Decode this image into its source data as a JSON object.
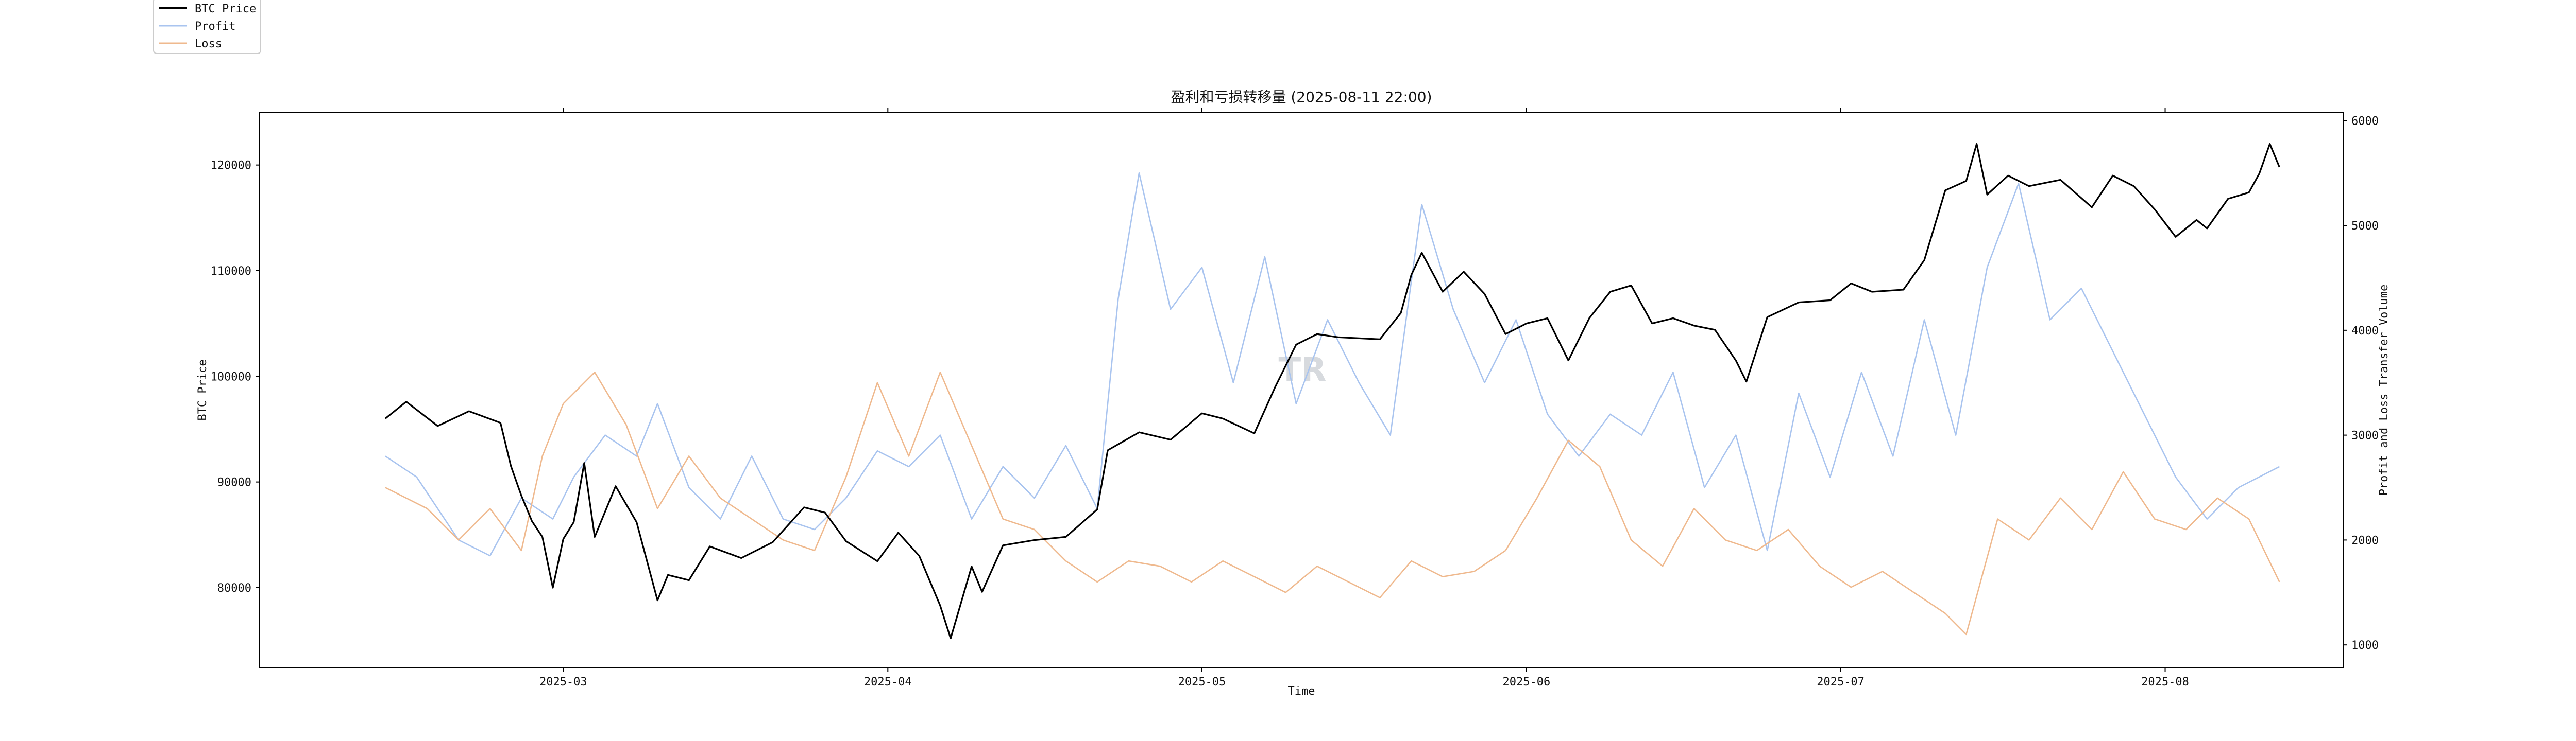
{
  "chart_data": {
    "type": "line",
    "title": "盈利和亏损转移量 (2025-08-11 22:00)",
    "xlabel": "Time",
    "ylabel_left": "BTC Price",
    "ylabel_right": "Profit and Loss Transfer Volume",
    "x_ticks": [
      "2025-03",
      "2025-04",
      "2025-05",
      "2025-06",
      "2025-07",
      "2025-08"
    ],
    "y_left_ticks": [
      80000,
      90000,
      100000,
      110000,
      120000
    ],
    "y_right_ticks": [
      1000,
      2000,
      3000,
      4000,
      5000,
      6000
    ],
    "y_left_range": [
      72400,
      125000
    ],
    "y_right_range": [
      780,
      6080
    ],
    "x_range": [
      "2025-01-31",
      "2025-08-18"
    ],
    "legend_position": "top-left",
    "watermark": "TR",
    "colors": {
      "btc": "#000000",
      "profit": "#a9c4ef",
      "loss": "#efb98e",
      "btc_profit_highlight": "#1f2f8f",
      "btc_loss_highlight": "#8a4a14"
    },
    "series": [
      {
        "name": "BTC Price",
        "axis": "left",
        "points": [
          [
            "2025-02-12",
            96000
          ],
          [
            "2025-02-14",
            97600
          ],
          [
            "2025-02-17",
            95300
          ],
          [
            "2025-02-20",
            96700
          ],
          [
            "2025-02-23",
            95600
          ],
          [
            "2025-02-24",
            91500
          ],
          [
            "2025-02-25",
            88700
          ],
          [
            "2025-02-26",
            86300
          ],
          [
            "2025-02-27",
            84800
          ],
          [
            "2025-02-28",
            80000
          ],
          [
            "2025-03-01",
            84600
          ],
          [
            "2025-03-02",
            86200
          ],
          [
            "2025-03-03",
            91800
          ],
          [
            "2025-03-04",
            84800
          ],
          [
            "2025-03-06",
            89600
          ],
          [
            "2025-03-08",
            86200
          ],
          [
            "2025-03-10",
            78800
          ],
          [
            "2025-03-11",
            81200
          ],
          [
            "2025-03-13",
            80700
          ],
          [
            "2025-03-15",
            83900
          ],
          [
            "2025-03-18",
            82800
          ],
          [
            "2025-03-21",
            84300
          ],
          [
            "2025-03-24",
            87600
          ],
          [
            "2025-03-26",
            87100
          ],
          [
            "2025-03-28",
            84400
          ],
          [
            "2025-03-31",
            82500
          ],
          [
            "2025-04-02",
            85200
          ],
          [
            "2025-04-04",
            83000
          ],
          [
            "2025-04-06",
            78300
          ],
          [
            "2025-04-07",
            75200
          ],
          [
            "2025-04-09",
            82000
          ],
          [
            "2025-04-10",
            79600
          ],
          [
            "2025-04-12",
            84000
          ],
          [
            "2025-04-15",
            84500
          ],
          [
            "2025-04-18",
            84800
          ],
          [
            "2025-04-21",
            87400
          ],
          [
            "2025-04-22",
            93000
          ],
          [
            "2025-04-25",
            94700
          ],
          [
            "2025-04-28",
            94000
          ],
          [
            "2025-05-01",
            96500
          ],
          [
            "2025-05-03",
            96000
          ],
          [
            "2025-05-06",
            94600
          ],
          [
            "2025-05-08",
            99000
          ],
          [
            "2025-05-10",
            103000
          ],
          [
            "2025-05-12",
            104000
          ],
          [
            "2025-05-14",
            103700
          ],
          [
            "2025-05-18",
            103500
          ],
          [
            "2025-05-20",
            106000
          ],
          [
            "2025-05-21",
            109600
          ],
          [
            "2025-05-22",
            111700
          ],
          [
            "2025-05-24",
            108000
          ],
          [
            "2025-05-26",
            109900
          ],
          [
            "2025-05-28",
            107800
          ],
          [
            "2025-05-30",
            104000
          ],
          [
            "2025-06-01",
            105000
          ],
          [
            "2025-06-03",
            105500
          ],
          [
            "2025-06-05",
            101500
          ],
          [
            "2025-06-07",
            105500
          ],
          [
            "2025-06-09",
            108000
          ],
          [
            "2025-06-11",
            108600
          ],
          [
            "2025-06-13",
            105000
          ],
          [
            "2025-06-15",
            105500
          ],
          [
            "2025-06-17",
            104800
          ],
          [
            "2025-06-19",
            104400
          ],
          [
            "2025-06-21",
            101500
          ],
          [
            "2025-06-22",
            99500
          ],
          [
            "2025-06-24",
            105600
          ],
          [
            "2025-06-27",
            107000
          ],
          [
            "2025-06-30",
            107200
          ],
          [
            "2025-07-02",
            108800
          ],
          [
            "2025-07-04",
            108000
          ],
          [
            "2025-07-07",
            108200
          ],
          [
            "2025-07-09",
            111000
          ],
          [
            "2025-07-11",
            117600
          ],
          [
            "2025-07-13",
            118500
          ],
          [
            "2025-07-14",
            122000
          ],
          [
            "2025-07-15",
            117200
          ],
          [
            "2025-07-17",
            119000
          ],
          [
            "2025-07-19",
            118000
          ],
          [
            "2025-07-22",
            118600
          ],
          [
            "2025-07-25",
            116000
          ],
          [
            "2025-07-27",
            119000
          ],
          [
            "2025-07-29",
            118000
          ],
          [
            "2025-07-31",
            115800
          ],
          [
            "2025-08-02",
            113200
          ],
          [
            "2025-08-04",
            114800
          ],
          [
            "2025-08-05",
            114000
          ],
          [
            "2025-08-07",
            116800
          ],
          [
            "2025-08-09",
            117400
          ],
          [
            "2025-08-10",
            119200
          ],
          [
            "2025-08-11",
            122000
          ],
          [
            "2025-08-11T22",
            119800
          ]
        ]
      },
      {
        "name": "Profit",
        "axis": "right",
        "points": [
          [
            "2025-02-12",
            2800
          ],
          [
            "2025-02-15",
            2600
          ],
          [
            "2025-02-19",
            2000
          ],
          [
            "2025-02-22",
            1850
          ],
          [
            "2025-02-25",
            2400
          ],
          [
            "2025-02-28",
            2200
          ],
          [
            "2025-03-02",
            2600
          ],
          [
            "2025-03-05",
            3000
          ],
          [
            "2025-03-08",
            2800
          ],
          [
            "2025-03-10",
            3300
          ],
          [
            "2025-03-13",
            2500
          ],
          [
            "2025-03-16",
            2200
          ],
          [
            "2025-03-19",
            2800
          ],
          [
            "2025-03-22",
            2200
          ],
          [
            "2025-03-25",
            2100
          ],
          [
            "2025-03-28",
            2400
          ],
          [
            "2025-03-31",
            2850
          ],
          [
            "2025-04-03",
            2700
          ],
          [
            "2025-04-06",
            3000
          ],
          [
            "2025-04-09",
            2200
          ],
          [
            "2025-04-12",
            2700
          ],
          [
            "2025-04-15",
            2400
          ],
          [
            "2025-04-18",
            2900
          ],
          [
            "2025-04-21",
            2300
          ],
          [
            "2025-04-23",
            4300
          ],
          [
            "2025-04-25",
            5500
          ],
          [
            "2025-04-28",
            4200
          ],
          [
            "2025-05-01",
            4600
          ],
          [
            "2025-05-04",
            3500
          ],
          [
            "2025-05-07",
            4700
          ],
          [
            "2025-05-10",
            3300
          ],
          [
            "2025-05-13",
            4100
          ],
          [
            "2025-05-16",
            3500
          ],
          [
            "2025-05-19",
            3000
          ],
          [
            "2025-05-22",
            5200
          ],
          [
            "2025-05-25",
            4200
          ],
          [
            "2025-05-28",
            3500
          ],
          [
            "2025-05-31",
            4100
          ],
          [
            "2025-06-03",
            3200
          ],
          [
            "2025-06-06",
            2800
          ],
          [
            "2025-06-09",
            3200
          ],
          [
            "2025-06-12",
            3000
          ],
          [
            "2025-06-15",
            3600
          ],
          [
            "2025-06-18",
            2500
          ],
          [
            "2025-06-21",
            3000
          ],
          [
            "2025-06-24",
            1900
          ],
          [
            "2025-06-27",
            3400
          ],
          [
            "2025-06-30",
            2600
          ],
          [
            "2025-07-03",
            3600
          ],
          [
            "2025-07-06",
            2800
          ],
          [
            "2025-07-09",
            4100
          ],
          [
            "2025-07-12",
            3000
          ],
          [
            "2025-07-15",
            4600
          ],
          [
            "2025-07-18",
            5400
          ],
          [
            "2025-07-21",
            4100
          ],
          [
            "2025-07-24",
            4400
          ],
          [
            "2025-07-27",
            3800
          ],
          [
            "2025-07-30",
            3200
          ],
          [
            "2025-08-02",
            2600
          ],
          [
            "2025-08-05",
            2200
          ],
          [
            "2025-08-08",
            2500
          ],
          [
            "2025-08-11T22",
            2700
          ]
        ]
      },
      {
        "name": "Loss",
        "axis": "right",
        "points": [
          [
            "2025-02-12",
            2500
          ],
          [
            "2025-02-16",
            2300
          ],
          [
            "2025-02-19",
            2000
          ],
          [
            "2025-02-22",
            2300
          ],
          [
            "2025-02-25",
            1900
          ],
          [
            "2025-02-27",
            2800
          ],
          [
            "2025-03-01",
            3300
          ],
          [
            "2025-03-04",
            3600
          ],
          [
            "2025-03-07",
            3100
          ],
          [
            "2025-03-10",
            2300
          ],
          [
            "2025-03-13",
            2800
          ],
          [
            "2025-03-16",
            2400
          ],
          [
            "2025-03-19",
            2200
          ],
          [
            "2025-03-22",
            2000
          ],
          [
            "2025-03-25",
            1900
          ],
          [
            "2025-03-28",
            2600
          ],
          [
            "2025-03-31",
            3500
          ],
          [
            "2025-04-03",
            2800
          ],
          [
            "2025-04-06",
            3600
          ],
          [
            "2025-04-09",
            2900
          ],
          [
            "2025-04-12",
            2200
          ],
          [
            "2025-04-15",
            2100
          ],
          [
            "2025-04-18",
            1800
          ],
          [
            "2025-04-21",
            1600
          ],
          [
            "2025-04-24",
            1800
          ],
          [
            "2025-04-27",
            1750
          ],
          [
            "2025-04-30",
            1600
          ],
          [
            "2025-05-03",
            1800
          ],
          [
            "2025-05-06",
            1650
          ],
          [
            "2025-05-09",
            1500
          ],
          [
            "2025-05-12",
            1750
          ],
          [
            "2025-05-15",
            1600
          ],
          [
            "2025-05-18",
            1450
          ],
          [
            "2025-05-21",
            1800
          ],
          [
            "2025-05-24",
            1650
          ],
          [
            "2025-05-27",
            1700
          ],
          [
            "2025-05-30",
            1900
          ],
          [
            "2025-06-02",
            2400
          ],
          [
            "2025-06-05",
            2950
          ],
          [
            "2025-06-08",
            2700
          ],
          [
            "2025-06-11",
            2000
          ],
          [
            "2025-06-14",
            1750
          ],
          [
            "2025-06-17",
            2300
          ],
          [
            "2025-06-20",
            2000
          ],
          [
            "2025-06-23",
            1900
          ],
          [
            "2025-06-26",
            2100
          ],
          [
            "2025-06-29",
            1750
          ],
          [
            "2025-07-02",
            1550
          ],
          [
            "2025-07-05",
            1700
          ],
          [
            "2025-07-08",
            1500
          ],
          [
            "2025-07-11",
            1300
          ],
          [
            "2025-07-13",
            1100
          ],
          [
            "2025-07-16",
            2200
          ],
          [
            "2025-07-19",
            2000
          ],
          [
            "2025-07-22",
            2400
          ],
          [
            "2025-07-25",
            2100
          ],
          [
            "2025-07-28",
            2650
          ],
          [
            "2025-07-31",
            2200
          ],
          [
            "2025-08-03",
            2100
          ],
          [
            "2025-08-06",
            2400
          ],
          [
            "2025-08-09",
            2200
          ],
          [
            "2025-08-11T22",
            1600
          ]
        ]
      }
    ]
  }
}
